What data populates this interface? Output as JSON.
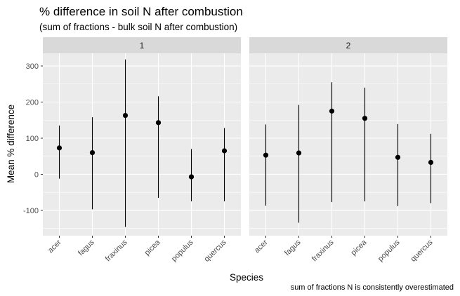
{
  "chart_data": {
    "type": "errorbar",
    "title": "% difference in soil N after combustion",
    "subtitle": "(sum of fractions - bulk soil N after combustion)",
    "xlabel": "Species",
    "ylabel": "Mean % difference",
    "caption": "sum of fractions N is consistently overestimated",
    "categories": [
      "acer",
      "fagus",
      "fraxinus",
      "picea",
      "populus",
      "quercus"
    ],
    "ylim": [
      -170,
      335
    ],
    "yticks": [
      -100,
      0,
      100,
      200,
      300
    ],
    "grid": true,
    "panels": [
      {
        "label": "1",
        "points": [
          {
            "category": "acer",
            "mean": 73,
            "lower": -12,
            "upper": 135
          },
          {
            "category": "fagus",
            "mean": 60,
            "lower": -97,
            "upper": 158
          },
          {
            "category": "fraxinus",
            "mean": 163,
            "lower": -146,
            "upper": 318
          },
          {
            "category": "picea",
            "mean": 143,
            "lower": -65,
            "upper": 216
          },
          {
            "category": "populus",
            "mean": -7,
            "lower": -75,
            "upper": 70
          },
          {
            "category": "quercus",
            "mean": 65,
            "lower": -75,
            "upper": 128
          }
        ]
      },
      {
        "label": "2",
        "points": [
          {
            "category": "acer",
            "mean": 53,
            "lower": -87,
            "upper": 138
          },
          {
            "category": "fagus",
            "mean": 59,
            "lower": -134,
            "upper": 192
          },
          {
            "category": "fraxinus",
            "mean": 175,
            "lower": -77,
            "upper": 255
          },
          {
            "category": "picea",
            "mean": 155,
            "lower": -75,
            "upper": 240
          },
          {
            "category": "populus",
            "mean": 47,
            "lower": -88,
            "upper": 139
          },
          {
            "category": "quercus",
            "mean": 33,
            "lower": -80,
            "upper": 112
          }
        ]
      }
    ],
    "colors": {
      "panel_bg": "#ebebeb",
      "strip_bg": "#d9d9d9",
      "grid": "#ffffff",
      "point": "#000000"
    }
  }
}
